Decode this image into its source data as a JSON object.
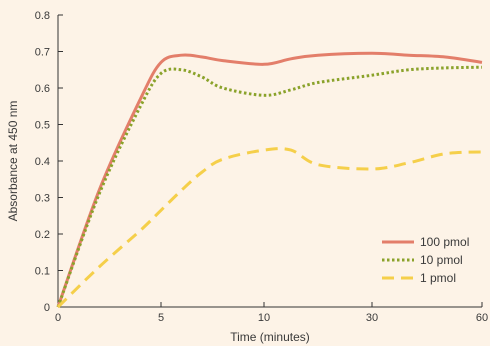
{
  "chart_data": {
    "type": "line",
    "title": "",
    "xlabel": "Time (minutes)",
    "ylabel": "Absorbance at 450 nm",
    "x_tick_labels": [
      "0",
      "5",
      "10",
      "30",
      "60"
    ],
    "y_ticks": [
      0,
      0.1,
      0.2,
      0.3,
      0.4,
      0.5,
      0.6,
      0.7,
      0.8
    ],
    "y_tick_labels": [
      "0",
      "0.1",
      "0.2",
      "0.3",
      "0.4",
      "0.5",
      "0.6",
      "0.7",
      "0.8"
    ],
    "ylim": [
      0,
      0.8
    ],
    "grid": false,
    "legend_position": "bottom-right",
    "series": [
      {
        "name": "100 pmol",
        "color": "#e37e6a",
        "style": "solid",
        "x": [
          "0",
          "2",
          "4",
          "5",
          "6",
          "7",
          "8",
          "10",
          "15",
          "20",
          "30",
          "40",
          "50",
          "60"
        ],
        "y": [
          0.0,
          0.32,
          0.57,
          0.67,
          0.69,
          0.685,
          0.675,
          0.665,
          0.68,
          0.69,
          0.695,
          0.69,
          0.685,
          0.67
        ]
      },
      {
        "name": "10 pmol",
        "color": "#8aa22a",
        "style": "dotted",
        "x": [
          "0",
          "2",
          "4",
          "5",
          "6",
          "7",
          "8",
          "10",
          "15",
          "20",
          "30",
          "40",
          "50",
          "60"
        ],
        "y": [
          0.0,
          0.31,
          0.55,
          0.64,
          0.65,
          0.63,
          0.6,
          0.58,
          0.595,
          0.615,
          0.635,
          0.65,
          0.655,
          0.657
        ]
      },
      {
        "name": "1 pmol",
        "color": "#f5cf4a",
        "style": "dashed",
        "x": [
          "0",
          "2",
          "4",
          "5",
          "6",
          "7",
          "8",
          "10",
          "15",
          "20",
          "30",
          "40",
          "50",
          "60"
        ],
        "y": [
          0.0,
          0.11,
          0.21,
          0.265,
          0.32,
          0.37,
          0.405,
          0.43,
          0.43,
          0.39,
          0.378,
          0.395,
          0.42,
          0.425
        ]
      }
    ]
  }
}
